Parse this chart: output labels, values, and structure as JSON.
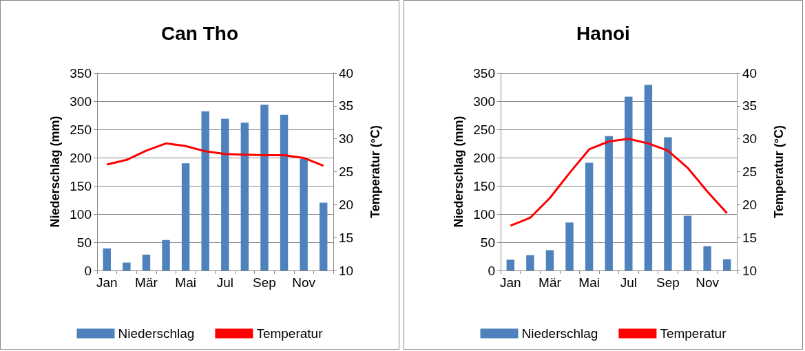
{
  "chart_data": [
    {
      "type": "bar",
      "title": "Can Tho",
      "ylabel": "Niederschlag (mm)",
      "y2label": "Temperatur (°C)",
      "categories": [
        "Jan",
        null,
        "Mär",
        null,
        "Mai",
        null,
        "Jul",
        null,
        "Sep",
        null,
        "Nov",
        null
      ],
      "series": [
        {
          "name": "Niederschlag",
          "color": "#4f81bd",
          "values": [
            39,
            14,
            28,
            54,
            190,
            282,
            269,
            262,
            294,
            276,
            198,
            120
          ]
        },
        {
          "name": "Temperatur",
          "type": "line",
          "axis": "y2",
          "color": "#ff0000",
          "values": [
            26.1,
            26.8,
            28.2,
            29.3,
            28.9,
            28.1,
            27.7,
            27.6,
            27.5,
            27.5,
            27.1,
            25.9
          ]
        }
      ],
      "ylim": [
        0,
        350
      ],
      "yticks": [
        0,
        50,
        100,
        150,
        200,
        250,
        300,
        350
      ],
      "y2lim": [
        10,
        40
      ],
      "y2ticks": [
        10,
        15,
        20,
        25,
        30,
        35,
        40
      ],
      "grid": "y",
      "legend": "bottom",
      "marker": "none"
    },
    {
      "type": "bar",
      "title": "Hanoi",
      "ylabel": "Niederschlag (mm)",
      "y2label": "Temperatur (°C)",
      "categories": [
        "Jan",
        null,
        "Mär",
        null,
        "Mai",
        null,
        "Jul",
        null,
        "Sep",
        null,
        "Nov",
        null
      ],
      "series": [
        {
          "name": "Niederschlag",
          "color": "#4f81bd",
          "values": [
            19,
            27,
            36,
            85,
            191,
            238,
            308,
            329,
            236,
            97,
            43,
            20
          ]
        },
        {
          "name": "Temperatur",
          "type": "line",
          "axis": "y2",
          "color": "#ff0000",
          "values": [
            16.8,
            18,
            21,
            24.8,
            28.4,
            29.6,
            30,
            29.3,
            28.2,
            25.6,
            22,
            18.7
          ]
        }
      ],
      "ylim": [
        0,
        350
      ],
      "yticks": [
        0,
        50,
        100,
        150,
        200,
        250,
        300,
        350
      ],
      "y2lim": [
        10,
        40
      ],
      "y2ticks": [
        10,
        15,
        20,
        25,
        30,
        35,
        40
      ],
      "grid": "y",
      "legend": "bottom",
      "marker": "none"
    }
  ]
}
